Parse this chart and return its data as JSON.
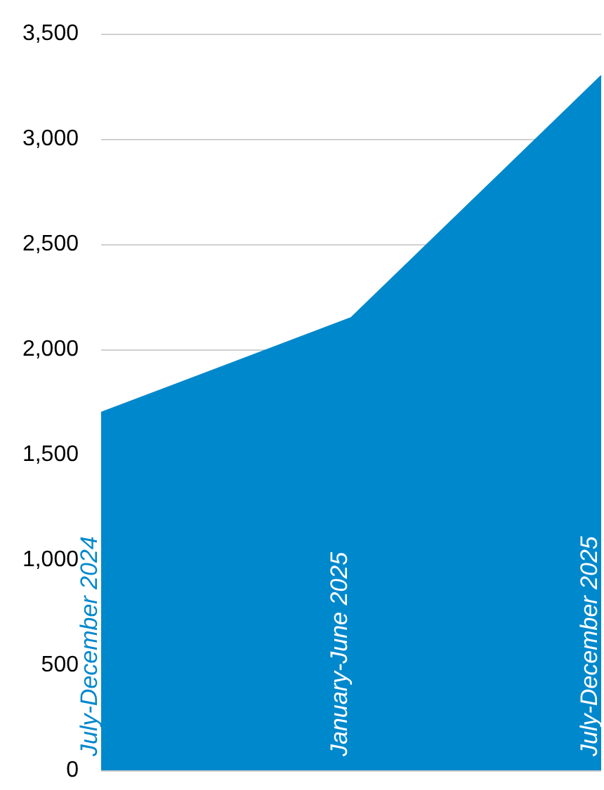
{
  "chart_data": {
    "type": "area",
    "categories": [
      "July-December 2024",
      "January-June 2025",
      "July-December 2025"
    ],
    "series": [
      {
        "color": "#0088cc",
        "values": [
          1700,
          2150,
          3300
        ]
      }
    ],
    "ylim": [
      0,
      3500
    ],
    "yticks": [
      0,
      500,
      {
        "value": 1000,
        "label": "1,000"
      },
      {
        "value": 1500,
        "label": "1,500"
      },
      {
        "value": 2000,
        "label": "2,000"
      },
      {
        "value": 2500,
        "label": "2,500"
      },
      {
        "value": 3000,
        "label": "3,000"
      },
      {
        "value": 3500,
        "label": "3,500"
      }
    ],
    "grid": "y"
  }
}
